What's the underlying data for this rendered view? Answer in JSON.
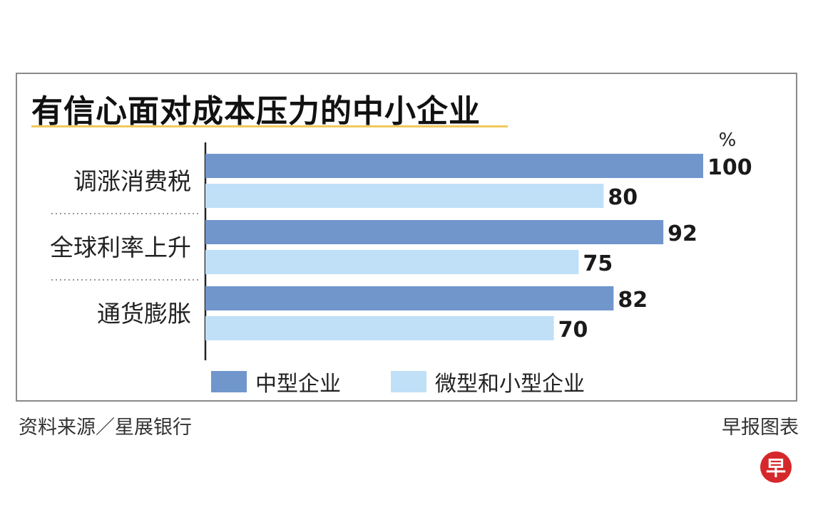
{
  "chart_data": {
    "type": "bar",
    "orientation": "horizontal",
    "title": "有信心面对成本压力的中小企业",
    "unit": "%",
    "categories": [
      "调涨消费税",
      "全球利率上升",
      "通货膨胀"
    ],
    "series": [
      {
        "name": "中型企业",
        "values": [
          100,
          92,
          82
        ],
        "color": "#7096cc"
      },
      {
        "name": "微型和小型企业",
        "values": [
          80,
          75,
          70
        ],
        "color": "#bfe0f7"
      }
    ],
    "xlim": [
      0,
      100
    ],
    "grid": false,
    "legend_position": "bottom"
  },
  "footer": {
    "source": "资料来源／星展银行",
    "credit": "早报图表",
    "logo_text": "早"
  }
}
